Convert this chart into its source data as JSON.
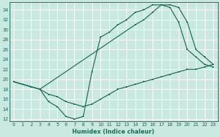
{
  "xlabel": "Humidex (Indice chaleur)",
  "bg_color": "#c8e8e0",
  "line_color": "#1a6b5a",
  "grid_color": "#b0d8cc",
  "xlim": [
    -0.5,
    23.5
  ],
  "ylim": [
    11.5,
    35.5
  ],
  "xticks": [
    0,
    1,
    2,
    3,
    4,
    5,
    6,
    7,
    8,
    9,
    10,
    11,
    12,
    13,
    14,
    15,
    16,
    17,
    18,
    19,
    20,
    21,
    22,
    23
  ],
  "yticks": [
    12,
    14,
    16,
    18,
    20,
    22,
    24,
    26,
    28,
    30,
    32,
    34
  ],
  "line1_x": [
    0,
    1,
    2,
    3,
    4,
    5,
    6,
    7,
    8,
    9,
    10,
    11,
    12,
    13,
    14,
    15,
    16,
    17,
    18,
    19,
    20,
    21,
    22,
    23
  ],
  "line1_y": [
    19.5,
    19.0,
    18.5,
    18.0,
    17.0,
    16.5,
    15.5,
    15.0,
    14.5,
    15.0,
    16.0,
    17.0,
    18.0,
    18.5,
    19.0,
    19.5,
    20.0,
    20.5,
    21.0,
    21.5,
    22.0,
    22.0,
    22.5,
    23.0
  ],
  "line2_x": [
    0,
    1,
    2,
    3,
    14,
    15,
    16,
    17,
    18,
    19,
    20,
    21,
    22,
    23
  ],
  "line2_y": [
    19.5,
    19.0,
    18.5,
    18.0,
    31.0,
    32.0,
    33.5,
    35.0,
    35.0,
    34.5,
    31.5,
    26.0,
    24.5,
    23.0
  ],
  "line3_x": [
    0,
    1,
    2,
    3,
    4,
    5,
    6,
    7,
    8,
    9,
    10,
    11,
    12,
    13,
    14,
    15,
    16,
    17,
    18,
    19,
    20,
    21,
    22,
    23
  ],
  "line3_y": [
    19.5,
    19.0,
    18.5,
    18.0,
    15.5,
    14.5,
    12.5,
    12.0,
    12.5,
    21.5,
    28.5,
    29.5,
    31.0,
    32.0,
    33.5,
    34.0,
    35.0,
    35.0,
    34.5,
    31.5,
    26.0,
    24.5,
    23.0,
    22.5
  ]
}
